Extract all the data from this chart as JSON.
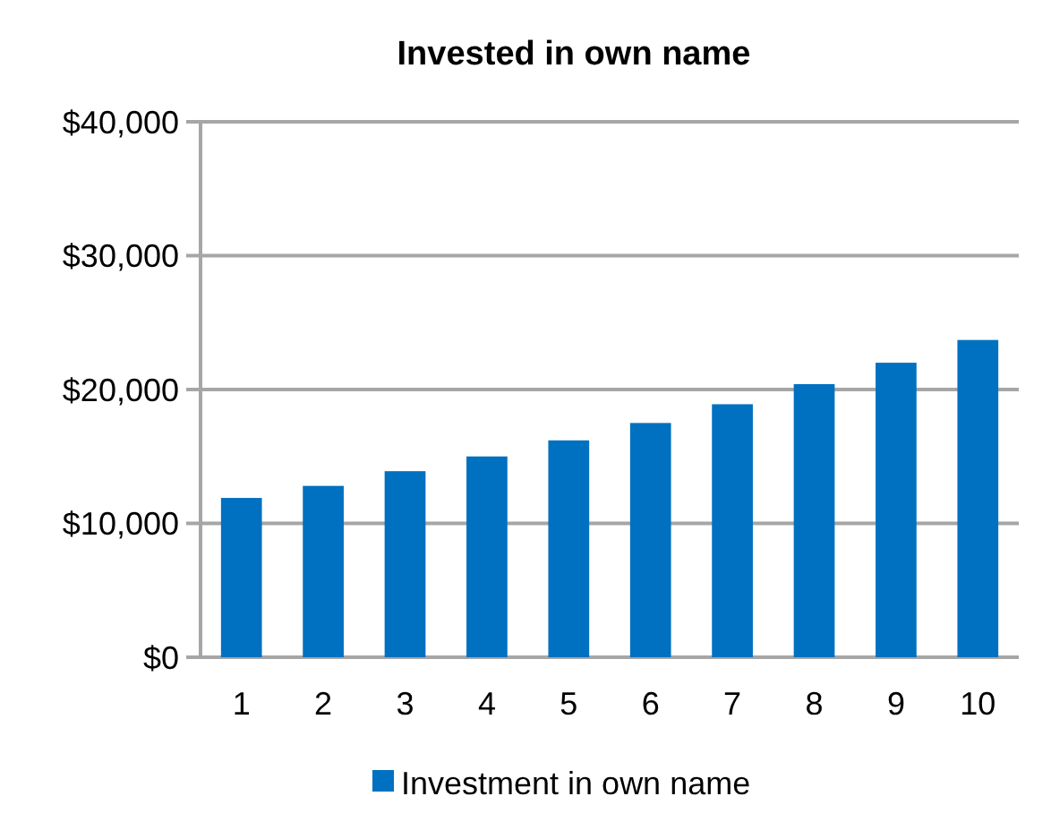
{
  "chart_data": {
    "type": "bar",
    "title": "Invested in own name",
    "categories": [
      "1",
      "2",
      "3",
      "4",
      "5",
      "6",
      "7",
      "8",
      "9",
      "10"
    ],
    "series": [
      {
        "name": "Investment in own name",
        "color": "#0070c0",
        "values": [
          11900,
          12800,
          13900,
          15000,
          16200,
          17500,
          18900,
          20400,
          22000,
          23700
        ]
      }
    ],
    "ylim": [
      0,
      40000
    ],
    "yticks": [
      {
        "value": 0,
        "label": "$0"
      },
      {
        "value": 10000,
        "label": "$10,000"
      },
      {
        "value": 20000,
        "label": "$20,000"
      },
      {
        "value": 30000,
        "label": "$30,000"
      },
      {
        "value": 40000,
        "label": "$40,000"
      }
    ],
    "grid": "y",
    "legend": "bottom"
  }
}
